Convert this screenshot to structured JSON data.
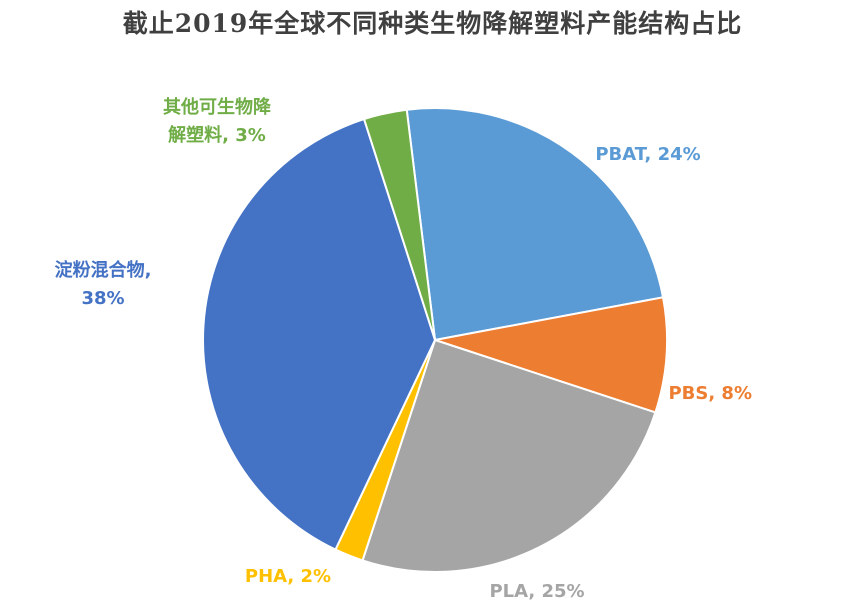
{
  "chart_data": {
    "type": "pie",
    "title": "截止2019年全球不同种类生物降解塑料产能结构占比",
    "slices": [
      {
        "name": "PBAT",
        "value": 24,
        "label_lines": [
          "PBAT, 24%"
        ],
        "color": "#5B9BD5"
      },
      {
        "name": "PBS",
        "value": 8,
        "label_lines": [
          "PBS, 8%"
        ],
        "color": "#ED7D31"
      },
      {
        "name": "PLA",
        "value": 25,
        "label_lines": [
          "PLA, 25%"
        ],
        "color": "#A5A5A5"
      },
      {
        "name": "PHA",
        "value": 2,
        "label_lines": [
          "PHA, 2%"
        ],
        "color": "#FFC000"
      },
      {
        "name": "淀粉混合物",
        "value": 38,
        "label_lines": [
          "淀粉混合物,",
          "38%"
        ],
        "color": "#4472C4"
      },
      {
        "name": "其他可生物降解塑料",
        "value": 3,
        "label_lines": [
          "其他可生物降",
          "解塑料, 3%"
        ],
        "color": "#70AD47"
      }
    ],
    "legend": "none",
    "data_labels": "outside"
  }
}
